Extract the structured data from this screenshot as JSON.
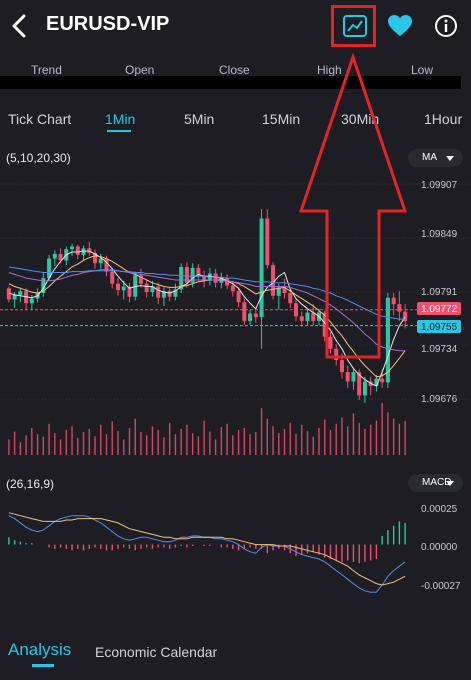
{
  "header": {
    "title": "EURUSD-VIP",
    "icons": [
      "back-chevron-icon",
      "chart-line-icon",
      "heart-icon",
      "info-icon"
    ]
  },
  "ohlc": {
    "labels": [
      "Trend",
      "Open",
      "Close",
      "High",
      "Low"
    ]
  },
  "timeframes": {
    "items": [
      "Tick Chart",
      "1Min",
      "5Min",
      "15Min",
      "30Min",
      "1Hour"
    ],
    "selected": "1Min"
  },
  "main_chart": {
    "params_label": "(5,10,20,30)",
    "indicator_selected": "MA",
    "price_ticks": [
      "1.09907",
      "1.09849",
      "1.09791",
      "1.09734",
      "1.09676"
    ],
    "current_price_tag": "1.09772",
    "ma_price_tag": "1.09755"
  },
  "macd_panel": {
    "params_label": "(26,16,9)",
    "indicator_selected": "MACD",
    "ticks": [
      "0.00025",
      "0.00000",
      "-0.00027"
    ]
  },
  "bottom_tabs": {
    "items": [
      "Analysis",
      "Economic Calendar"
    ],
    "selected": "Analysis"
  },
  "colors": {
    "accent": "#29c6e6",
    "up": "#2ec7a1",
    "down": "#f0506e",
    "background": "#1d1d23",
    "annotation": "#e0242a"
  },
  "chart_data": {
    "type": "candlestick",
    "ylim": [
      1.0966,
      1.0992
    ],
    "candles": [
      [
        1.09795,
        1.09797,
        1.0978,
        1.09783
      ],
      [
        1.09783,
        1.09791,
        1.09774,
        1.09788
      ],
      [
        1.09788,
        1.09796,
        1.0978,
        1.09792
      ],
      [
        1.09792,
        1.09795,
        1.09772,
        1.09779
      ],
      [
        1.09779,
        1.09788,
        1.09772,
        1.09784
      ],
      [
        1.09784,
        1.09795,
        1.0978,
        1.0979
      ],
      [
        1.0979,
        1.09811,
        1.09786,
        1.09806
      ],
      [
        1.09806,
        1.09831,
        1.09803,
        1.09827
      ],
      [
        1.09827,
        1.09836,
        1.09819,
        1.09832
      ],
      [
        1.09832,
        1.09838,
        1.09822,
        1.09825
      ],
      [
        1.09825,
        1.0984,
        1.0982,
        1.09837
      ],
      [
        1.09837,
        1.09843,
        1.0983,
        1.0984
      ],
      [
        1.0984,
        1.09842,
        1.09826,
        1.09831
      ],
      [
        1.09831,
        1.09841,
        1.09825,
        1.09838
      ],
      [
        1.09838,
        1.09845,
        1.0983,
        1.09833
      ],
      [
        1.09833,
        1.09837,
        1.09816,
        1.09822
      ],
      [
        1.09822,
        1.09832,
        1.09816,
        1.09827
      ],
      [
        1.09827,
        1.0983,
        1.09808,
        1.09813
      ],
      [
        1.09813,
        1.09817,
        1.09795,
        1.098
      ],
      [
        1.098,
        1.09806,
        1.09787,
        1.09793
      ],
      [
        1.09793,
        1.09803,
        1.09783,
        1.09797
      ],
      [
        1.09797,
        1.09801,
        1.0978,
        1.09786
      ],
      [
        1.09786,
        1.09813,
        1.09782,
        1.09809
      ],
      [
        1.09809,
        1.09816,
        1.09796,
        1.098
      ],
      [
        1.098,
        1.09804,
        1.09785,
        1.09791
      ],
      [
        1.09791,
        1.09803,
        1.09786,
        1.09797
      ],
      [
        1.09797,
        1.09801,
        1.09778,
        1.09785
      ],
      [
        1.09785,
        1.09796,
        1.09776,
        1.09792
      ],
      [
        1.09792,
        1.09795,
        1.09781,
        1.09786
      ],
      [
        1.09786,
        1.098,
        1.09782,
        1.09794
      ],
      [
        1.09794,
        1.09822,
        1.0979,
        1.09818
      ],
      [
        1.09818,
        1.09823,
        1.09796,
        1.09801
      ],
      [
        1.09801,
        1.09822,
        1.09796,
        1.09817
      ],
      [
        1.09817,
        1.09821,
        1.09803,
        1.09808
      ],
      [
        1.09808,
        1.09814,
        1.09796,
        1.09803
      ],
      [
        1.09803,
        1.09817,
        1.09798,
        1.09811
      ],
      [
        1.09811,
        1.09816,
        1.09796,
        1.09801
      ],
      [
        1.09801,
        1.09812,
        1.09795,
        1.09806
      ],
      [
        1.09806,
        1.0981,
        1.09794,
        1.09798
      ],
      [
        1.09798,
        1.09803,
        1.09786,
        1.09792
      ],
      [
        1.09792,
        1.09796,
        1.09775,
        1.0978
      ],
      [
        1.0978,
        1.09784,
        1.09756,
        1.0976
      ],
      [
        1.0976,
        1.09772,
        1.09756,
        1.09768
      ],
      [
        1.09768,
        1.09771,
        1.09758,
        1.09764
      ],
      [
        1.09764,
        1.0988,
        1.0973,
        1.0987
      ],
      [
        1.0987,
        1.0988,
        1.09816,
        1.0982
      ],
      [
        1.0982,
        1.09823,
        1.09783,
        1.09787
      ],
      [
        1.09787,
        1.098,
        1.09772,
        1.09796
      ],
      [
        1.09796,
        1.09805,
        1.09784,
        1.0979
      ],
      [
        1.0979,
        1.09794,
        1.09774,
        1.09779
      ],
      [
        1.09779,
        1.09785,
        1.0976,
        1.09765
      ],
      [
        1.09765,
        1.0977,
        1.09754,
        1.0976
      ],
      [
        1.0976,
        1.09773,
        1.09755,
        1.09769
      ],
      [
        1.09769,
        1.09778,
        1.09755,
        1.0976
      ],
      [
        1.0976,
        1.09773,
        1.09755,
        1.09769
      ],
      [
        1.09769,
        1.09771,
        1.09738,
        1.09743
      ],
      [
        1.09743,
        1.09748,
        1.09725,
        1.0973
      ],
      [
        1.0973,
        1.09735,
        1.09712,
        1.09718
      ],
      [
        1.09718,
        1.09725,
        1.09698,
        1.09705
      ],
      [
        1.09705,
        1.09712,
        1.09688,
        1.09695
      ],
      [
        1.09695,
        1.0971,
        1.09686,
        1.09705
      ],
      [
        1.09705,
        1.09708,
        1.09675,
        1.0968
      ],
      [
        1.0968,
        1.097,
        1.09672,
        1.09695
      ],
      [
        1.09695,
        1.097,
        1.0968,
        1.0969
      ],
      [
        1.0969,
        1.09702,
        1.09684,
        1.09698
      ],
      [
        1.09698,
        1.09708,
        1.09688,
        1.09694
      ],
      [
        1.09694,
        1.0979,
        1.09688,
        1.09785
      ],
      [
        1.09785,
        1.0979,
        1.09766,
        1.09778
      ],
      [
        1.09778,
        1.09792,
        1.0976,
        1.0977
      ],
      [
        1.0977,
        1.09778,
        1.09752,
        1.0976
      ]
    ],
    "ma": {
      "MA5": [
        1.0979,
        1.09788,
        1.09787,
        1.09786,
        1.09785,
        1.09787,
        1.09795,
        1.09806,
        1.09816,
        1.09824,
        1.09831,
        1.09834,
        1.09834,
        1.09835,
        1.09835,
        1.09832,
        1.09828,
        1.09823,
        1.09816,
        1.09808,
        1.09801,
        1.09795,
        1.09797,
        1.09798,
        1.09797,
        1.09797,
        1.09793,
        1.09791,
        1.0979,
        1.09792,
        1.09797,
        1.098,
        1.09806,
        1.0981,
        1.09808,
        1.09808,
        1.09807,
        1.09806,
        1.09803,
        1.098,
        1.09795,
        1.09786,
        1.09779,
        1.09773,
        1.09787,
        1.09796,
        1.09801,
        1.09808,
        1.09812,
        1.09794,
        1.09784,
        1.09778,
        1.09773,
        1.09769,
        1.09765,
        1.09758,
        1.0975,
        1.09739,
        1.0973,
        1.09718,
        1.09709,
        1.09702,
        1.09697,
        1.09693,
        1.0969,
        1.09705,
        1.09722,
        1.0974,
        1.09755,
        1.09764
      ],
      "MA10": [
        1.098,
        1.09797,
        1.09795,
        1.09793,
        1.09791,
        1.0979,
        1.09792,
        1.09797,
        1.09803,
        1.09808,
        1.09813,
        1.09818,
        1.09821,
        1.09825,
        1.09828,
        1.0983,
        1.09829,
        1.09827,
        1.09824,
        1.0982,
        1.09816,
        1.09812,
        1.0981,
        1.09807,
        1.09804,
        1.09801,
        1.09799,
        1.09797,
        1.09796,
        1.09796,
        1.09797,
        1.09798,
        1.098,
        1.09802,
        1.09803,
        1.09804,
        1.09804,
        1.09804,
        1.09803,
        1.09802,
        1.098,
        1.09797,
        1.09793,
        1.09789,
        1.09791,
        1.09793,
        1.09794,
        1.09795,
        1.09796,
        1.09792,
        1.09788,
        1.09784,
        1.0978,
        1.09776,
        1.09771,
        1.09766,
        1.09759,
        1.09751,
        1.09744,
        1.09735,
        1.09727,
        1.09719,
        1.09712,
        1.09706,
        1.097,
        1.09701,
        1.09705,
        1.09712,
        1.0972,
        1.09728
      ],
      "MA20": [
        1.09812,
        1.0981,
        1.09808,
        1.09806,
        1.09805,
        1.09804,
        1.09803,
        1.09803,
        1.09804,
        1.09805,
        1.09807,
        1.09809,
        1.0981,
        1.09812,
        1.09813,
        1.09814,
        1.09815,
        1.09815,
        1.09815,
        1.09814,
        1.09813,
        1.09812,
        1.09811,
        1.0981,
        1.09809,
        1.09808,
        1.09807,
        1.09806,
        1.09805,
        1.09804,
        1.09804,
        1.09804,
        1.09804,
        1.09804,
        1.09804,
        1.09804,
        1.09804,
        1.09803,
        1.09803,
        1.09802,
        1.09801,
        1.098,
        1.09799,
        1.09797,
        1.09797,
        1.09797,
        1.09797,
        1.09797,
        1.09797,
        1.09796,
        1.09794,
        1.09792,
        1.0979,
        1.09787,
        1.09784,
        1.09781,
        1.09777,
        1.09773,
        1.09768,
        1.09763,
        1.09758,
        1.09752,
        1.09746,
        1.09741,
        1.09735,
        1.09732,
        1.0973,
        1.09729,
        1.09728,
        1.09728
      ],
      "MA30": [
        1.09818,
        1.09817,
        1.09816,
        1.09815,
        1.09814,
        1.09813,
        1.09812,
        1.09812,
        1.09812,
        1.09812,
        1.09812,
        1.09813,
        1.09813,
        1.09813,
        1.09814,
        1.09814,
        1.09814,
        1.09814,
        1.09814,
        1.09814,
        1.09813,
        1.09813,
        1.09812,
        1.09812,
        1.09811,
        1.09811,
        1.0981,
        1.0981,
        1.09809,
        1.09809,
        1.09809,
        1.09808,
        1.09808,
        1.09808,
        1.09808,
        1.09807,
        1.09807,
        1.09807,
        1.09806,
        1.09806,
        1.09805,
        1.09804,
        1.09803,
        1.09802,
        1.09802,
        1.09802,
        1.09801,
        1.09801,
        1.09801,
        1.098,
        1.09799,
        1.09798,
        1.09797,
        1.09795,
        1.09794,
        1.09792,
        1.0979,
        1.09787,
        1.09785,
        1.09782,
        1.09779,
        1.09776,
        1.09773,
        1.0977,
        1.09767,
        1.09765,
        1.09764,
        1.09763,
        1.09762,
        1.09762
      ]
    },
    "volume": [
      0.3,
      0.45,
      0.25,
      0.38,
      0.52,
      0.4,
      0.35,
      0.6,
      0.42,
      0.3,
      0.48,
      0.55,
      0.33,
      0.44,
      0.5,
      0.36,
      0.58,
      0.4,
      0.65,
      0.46,
      0.3,
      0.52,
      0.7,
      0.44,
      0.38,
      0.55,
      0.48,
      0.34,
      0.62,
      0.4,
      0.5,
      0.58,
      0.42,
      0.36,
      0.66,
      0.45,
      0.3,
      0.54,
      0.6,
      0.38,
      0.48,
      0.52,
      0.4,
      0.44,
      0.9,
      0.7,
      0.56,
      0.42,
      0.5,
      0.62,
      0.4,
      0.58,
      0.46,
      0.35,
      0.52,
      0.68,
      0.48,
      0.6,
      0.72,
      0.55,
      0.8,
      0.62,
      0.5,
      0.58,
      0.66,
      1.0,
      0.82,
      0.7,
      0.6,
      0.65
    ],
    "macd": {
      "ylim": [
        -0.00037,
        0.00035
      ],
      "hist": [
        5e-05,
        3e-05,
        2e-05,
        1e-05,
        1e-05,
        0.0,
        0.0,
        -2e-05,
        -3e-05,
        -2e-05,
        -3e-05,
        -4e-05,
        -3e-05,
        -4e-05,
        -3e-05,
        -2e-05,
        -3e-05,
        -4e-05,
        -4e-05,
        -3e-05,
        -2e-05,
        -3e-05,
        -4e-05,
        -3e-05,
        -2e-05,
        -3e-05,
        -2e-05,
        -2e-05,
        -3e-05,
        -2e-05,
        -1e-05,
        -2e-05,
        -1e-05,
        0.0,
        -1e-05,
        -1e-05,
        0.0,
        -2e-05,
        -2e-05,
        -3e-05,
        -4e-05,
        -3e-05,
        -2e-05,
        -3e-05,
        -3e-05,
        -6e-05,
        -4e-05,
        -3e-05,
        -4e-05,
        -6e-05,
        -8e-05,
        -7e-05,
        -6e-05,
        -5e-05,
        -7e-05,
        -9e-05,
        -0.0001,
        -0.00011,
        -0.00012,
        -0.00011,
        -0.00012,
        -0.00013,
        -0.00012,
        -0.00011,
        -0.0001,
        6e-05,
        0.0001,
        0.00013,
        0.00016,
        0.00015
      ],
      "dif": [
        0.0002,
        0.00018,
        0.00015,
        0.00012,
        0.0001,
        9e-05,
        0.0001,
        0.00013,
        0.00016,
        0.00018,
        0.00019,
        0.0002,
        0.0002,
        0.0002,
        0.00019,
        0.00017,
        0.00015,
        0.00012,
        9e-05,
        6e-05,
        4e-05,
        3e-05,
        4e-05,
        5e-05,
        5e-05,
        4e-05,
        3e-05,
        2e-05,
        2e-05,
        3e-05,
        5e-05,
        5e-05,
        6e-05,
        6e-05,
        5e-05,
        5e-05,
        4e-05,
        4e-05,
        3e-05,
        2e-05,
        0.0,
        -3e-05,
        -5e-05,
        -6e-05,
        -2e-05,
        0.0,
        -1e-05,
        -1e-05,
        -1e-05,
        -3e-05,
        -5e-05,
        -7e-05,
        -8e-05,
        -9e-05,
        -0.0001,
        -0.00012,
        -0.00015,
        -0.00018,
        -0.00021,
        -0.00024,
        -0.00027,
        -0.0003,
        -0.00032,
        -0.00033,
        -0.00033,
        -0.00028,
        -0.00022,
        -0.00018,
        -0.00015,
        -0.00012
      ],
      "dea": [
        0.00022,
        0.00021,
        0.0002,
        0.00019,
        0.00018,
        0.00017,
        0.00016,
        0.00016,
        0.00016,
        0.00016,
        0.00017,
        0.00017,
        0.00018,
        0.00018,
        0.00018,
        0.00018,
        0.00018,
        0.00017,
        0.00016,
        0.00015,
        0.00013,
        0.00011,
        0.0001,
        9e-05,
        8e-05,
        7e-05,
        6e-05,
        5e-05,
        5e-05,
        4e-05,
        4e-05,
        4e-05,
        5e-05,
        5e-05,
        5e-05,
        5e-05,
        5e-05,
        5e-05,
        4e-05,
        4e-05,
        3e-05,
        2e-05,
        1e-05,
        0.0,
        0.0,
        0.0,
        0.0,
        -1e-05,
        -1e-05,
        -1e-05,
        -2e-05,
        -3e-05,
        -4e-05,
        -5e-05,
        -6e-05,
        -7e-05,
        -9e-05,
        -0.00011,
        -0.00013,
        -0.00015,
        -0.00018,
        -0.00021,
        -0.00023,
        -0.00025,
        -0.00027,
        -0.00028,
        -0.00027,
        -0.00026,
        -0.00024,
        -0.00022
      ]
    }
  }
}
